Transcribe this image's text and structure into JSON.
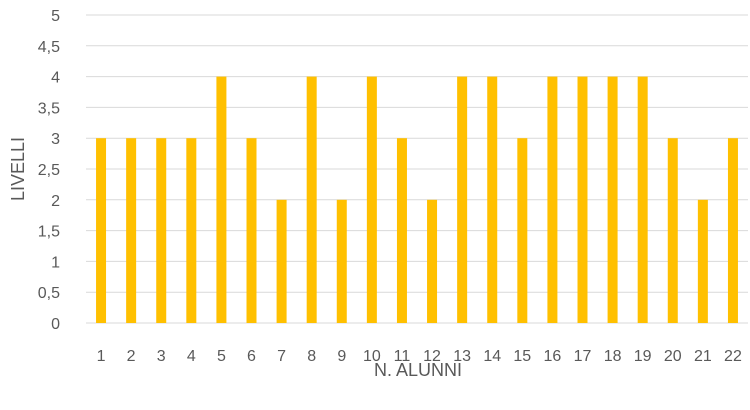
{
  "chart_data": {
    "type": "bar",
    "categories": [
      "1",
      "2",
      "3",
      "4",
      "5",
      "6",
      "7",
      "8",
      "9",
      "10",
      "11",
      "12",
      "13",
      "14",
      "15",
      "16",
      "17",
      "18",
      "19",
      "20",
      "21",
      "22"
    ],
    "values": [
      3,
      3,
      3,
      3,
      4,
      3,
      2,
      4,
      2,
      4,
      3,
      2,
      4,
      4,
      3,
      4,
      4,
      4,
      4,
      3,
      2,
      3
    ],
    "xlabel": "N. ALUNNI",
    "ylabel": "LIVELLI",
    "ylim": [
      0,
      5
    ],
    "yticks": [
      "0",
      "0,5",
      "1",
      "1,5",
      "2",
      "2,5",
      "3",
      "3,5",
      "4",
      "4,5",
      "5"
    ],
    "grid": true,
    "bar_color": "#FFC000",
    "grid_color": "#D9D9D9",
    "text_color": "#595959"
  }
}
